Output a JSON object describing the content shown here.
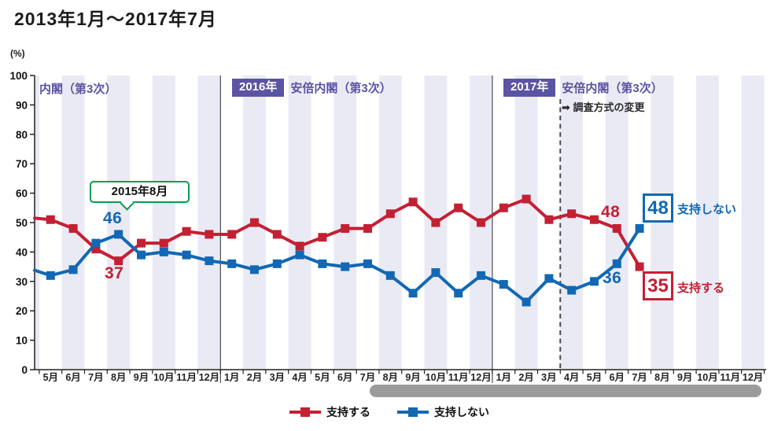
{
  "header": {
    "title": "2013年1月～2017年7月"
  },
  "axis": {
    "percent_label": "(%)",
    "y_ticks": [
      0,
      10,
      20,
      30,
      40,
      50,
      60,
      70,
      80,
      90,
      100
    ]
  },
  "sections": {
    "cabinet_left_partial": "内閣（第3次）",
    "year_2016": "2016年",
    "cabinet_2016": "安倍内閣（第3次）",
    "year_2017": "2017年",
    "cabinet_2017": "安倍内閣（第3次）",
    "survey_change_note": "➡ 調査方式の変更"
  },
  "annotations": {
    "callout_aug2015": "2015年8月",
    "aug2015_blue": "46",
    "aug2015_red": "37",
    "jun2017_red": "48",
    "jun2017_blue": "36",
    "end_blue_value": "48",
    "end_blue_label": "支持しない",
    "end_red_value": "35",
    "end_red_label": "支持する"
  },
  "legend": {
    "items": [
      {
        "label": "支持する",
        "color": "#c42033"
      },
      {
        "label": "支持しない",
        "color": "#1268b4"
      }
    ]
  },
  "colors": {
    "support_red": "#c42033",
    "oppose_blue": "#1268b4",
    "year_purple": "#5b53a4",
    "stripe": "#eaeaf4",
    "callout_green": "#00a04f",
    "scrollbar_gray": "#9b9b9b"
  },
  "chart_data": {
    "type": "line",
    "title": "2013年1月～2017年7月",
    "ylabel": "(%)",
    "ylim": [
      0,
      100
    ],
    "ytick_step": 10,
    "grid": "alternate vertical month stripes",
    "categories": [
      "5月",
      "6月",
      "7月",
      "8月",
      "9月",
      "10月",
      "11月",
      "12月",
      "1月",
      "2月",
      "3月",
      "4月",
      "5月",
      "6月",
      "7月",
      "8月",
      "9月",
      "10月",
      "11月",
      "12月",
      "1月",
      "2月",
      "3月",
      "4月",
      "5月",
      "6月",
      "7月",
      "8月",
      "9月",
      "10月",
      "11月",
      "12月"
    ],
    "category_years": [
      "2015 (5月-12月)",
      "2016 (1月-12月)",
      "2017 (1月-12月)"
    ],
    "year_separator_after_index": [
      7,
      19
    ],
    "survey_method_change_between_index": [
      22,
      23
    ],
    "data_ends_at_index": 26,
    "left_edge_entry": {
      "支持する": 51.5,
      "支持しない": 33.8
    },
    "series": [
      {
        "name": "支持する",
        "color": "#c42033",
        "values": [
          51,
          48,
          41,
          37,
          43,
          43,
          47,
          46,
          46,
          50,
          46,
          42,
          45,
          48,
          48,
          53,
          57,
          50,
          55,
          50,
          55,
          58,
          51,
          53,
          51,
          48,
          35
        ]
      },
      {
        "name": "支持しない",
        "color": "#1268b4",
        "values": [
          32,
          34,
          43,
          46,
          39,
          40,
          39,
          37,
          36,
          34,
          36,
          39,
          36,
          35,
          36,
          32,
          26,
          33,
          26,
          32,
          29,
          23,
          31,
          27,
          30,
          36,
          48
        ]
      }
    ],
    "labeled_points": {
      "2015年8月": {
        "支持する": 37,
        "支持しない": 46
      },
      "2017年6月": {
        "支持する": 48,
        "支持しない": 36
      },
      "2017年7月": {
        "支持する": 35,
        "支持しない": 48
      }
    }
  }
}
